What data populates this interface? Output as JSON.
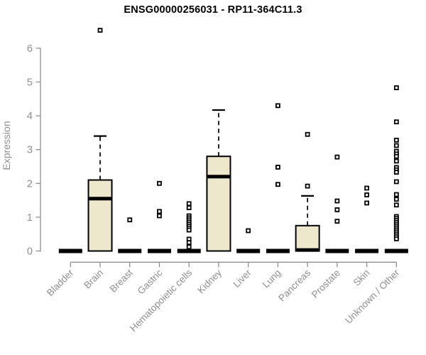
{
  "chart_data": {
    "type": "boxplot",
    "title": "ENSG00000256031 - RP11-364C11.3",
    "ylabel": "Expression",
    "xlabel": "",
    "ylim": [
      0,
      6.6
    ],
    "yticks": [
      0,
      1,
      2,
      3,
      4,
      5,
      6
    ],
    "grid": false,
    "legend": false,
    "categories": [
      "Bladder",
      "Brain",
      "Breast",
      "Gastric",
      "Hematopoietic cells",
      "Kidney",
      "Liver",
      "Lung",
      "Pancreas",
      "Prostate",
      "Skin",
      "Unknown / Other"
    ],
    "boxes": [
      {
        "category": "Bladder",
        "q1": 0,
        "median": 0,
        "q3": 0,
        "whisker_low": 0,
        "whisker_high": 0,
        "outliers": []
      },
      {
        "category": "Brain",
        "q1": 0,
        "median": 1.55,
        "q3": 2.1,
        "whisker_low": 0,
        "whisker_high": 3.4,
        "outliers": [
          6.53
        ]
      },
      {
        "category": "Breast",
        "q1": 0,
        "median": 0,
        "q3": 0,
        "whisker_low": 0,
        "whisker_high": 0,
        "outliers": [
          0.92
        ]
      },
      {
        "category": "Gastric",
        "q1": 0,
        "median": 0,
        "q3": 0,
        "whisker_low": 0,
        "whisker_high": 0,
        "outliers": [
          2.0,
          1.17,
          1.04
        ]
      },
      {
        "category": "Hematopoietic cells",
        "q1": 0,
        "median": 0,
        "q3": 0,
        "whisker_low": 0,
        "whisker_high": 0,
        "outliers": [
          1.4,
          1.28,
          1.04,
          0.98,
          0.92,
          0.86,
          0.8,
          0.74,
          0.68,
          0.62,
          0.35,
          0.25,
          0.12
        ]
      },
      {
        "category": "Kidney",
        "q1": 0,
        "median": 2.2,
        "q3": 2.8,
        "whisker_low": 0,
        "whisker_high": 4.17,
        "outliers": []
      },
      {
        "category": "Liver",
        "q1": 0,
        "median": 0,
        "q3": 0,
        "whisker_low": 0,
        "whisker_high": 0,
        "outliers": [
          0.6
        ]
      },
      {
        "category": "Lung",
        "q1": 0,
        "median": 0,
        "q3": 0,
        "whisker_low": 0,
        "whisker_high": 0,
        "outliers": [
          4.3,
          2.48,
          1.97
        ]
      },
      {
        "category": "Pancreas",
        "q1": 0,
        "median": 0.03,
        "q3": 0.75,
        "whisker_low": 0,
        "whisker_high": 1.63,
        "outliers": [
          3.45,
          1.92
        ]
      },
      {
        "category": "Prostate",
        "q1": 0,
        "median": 0,
        "q3": 0,
        "whisker_low": 0,
        "whisker_high": 0,
        "outliers": [
          2.78,
          1.48,
          1.22,
          0.88
        ]
      },
      {
        "category": "Skin",
        "q1": 0,
        "median": 0,
        "q3": 0,
        "whisker_low": 0,
        "whisker_high": 0,
        "outliers": [
          1.86,
          1.66,
          1.42
        ]
      },
      {
        "category": "Unknown / Other",
        "q1": 0,
        "median": 0,
        "q3": 0,
        "whisker_low": 0,
        "whisker_high": 0,
        "outliers": [
          4.83,
          3.82,
          3.28,
          3.12,
          2.95,
          2.87,
          2.8,
          2.66,
          2.47,
          2.4,
          2.33,
          2.05,
          1.67,
          1.53,
          1.36,
          1.02,
          0.96,
          0.9,
          0.84,
          0.78,
          0.72,
          0.66,
          0.6,
          0.54,
          0.48,
          0.42,
          0.36
        ]
      }
    ],
    "colors": {
      "box_fill": "#EDE7CC",
      "box_stroke": "#000000",
      "median": "#000000",
      "whisker": "#000000",
      "outlier_stroke": "#000000",
      "outlier_fill": "#ffffff",
      "axis": "#8f8f8f",
      "tick_label": "#8f8f8f",
      "title": "#000000"
    }
  }
}
